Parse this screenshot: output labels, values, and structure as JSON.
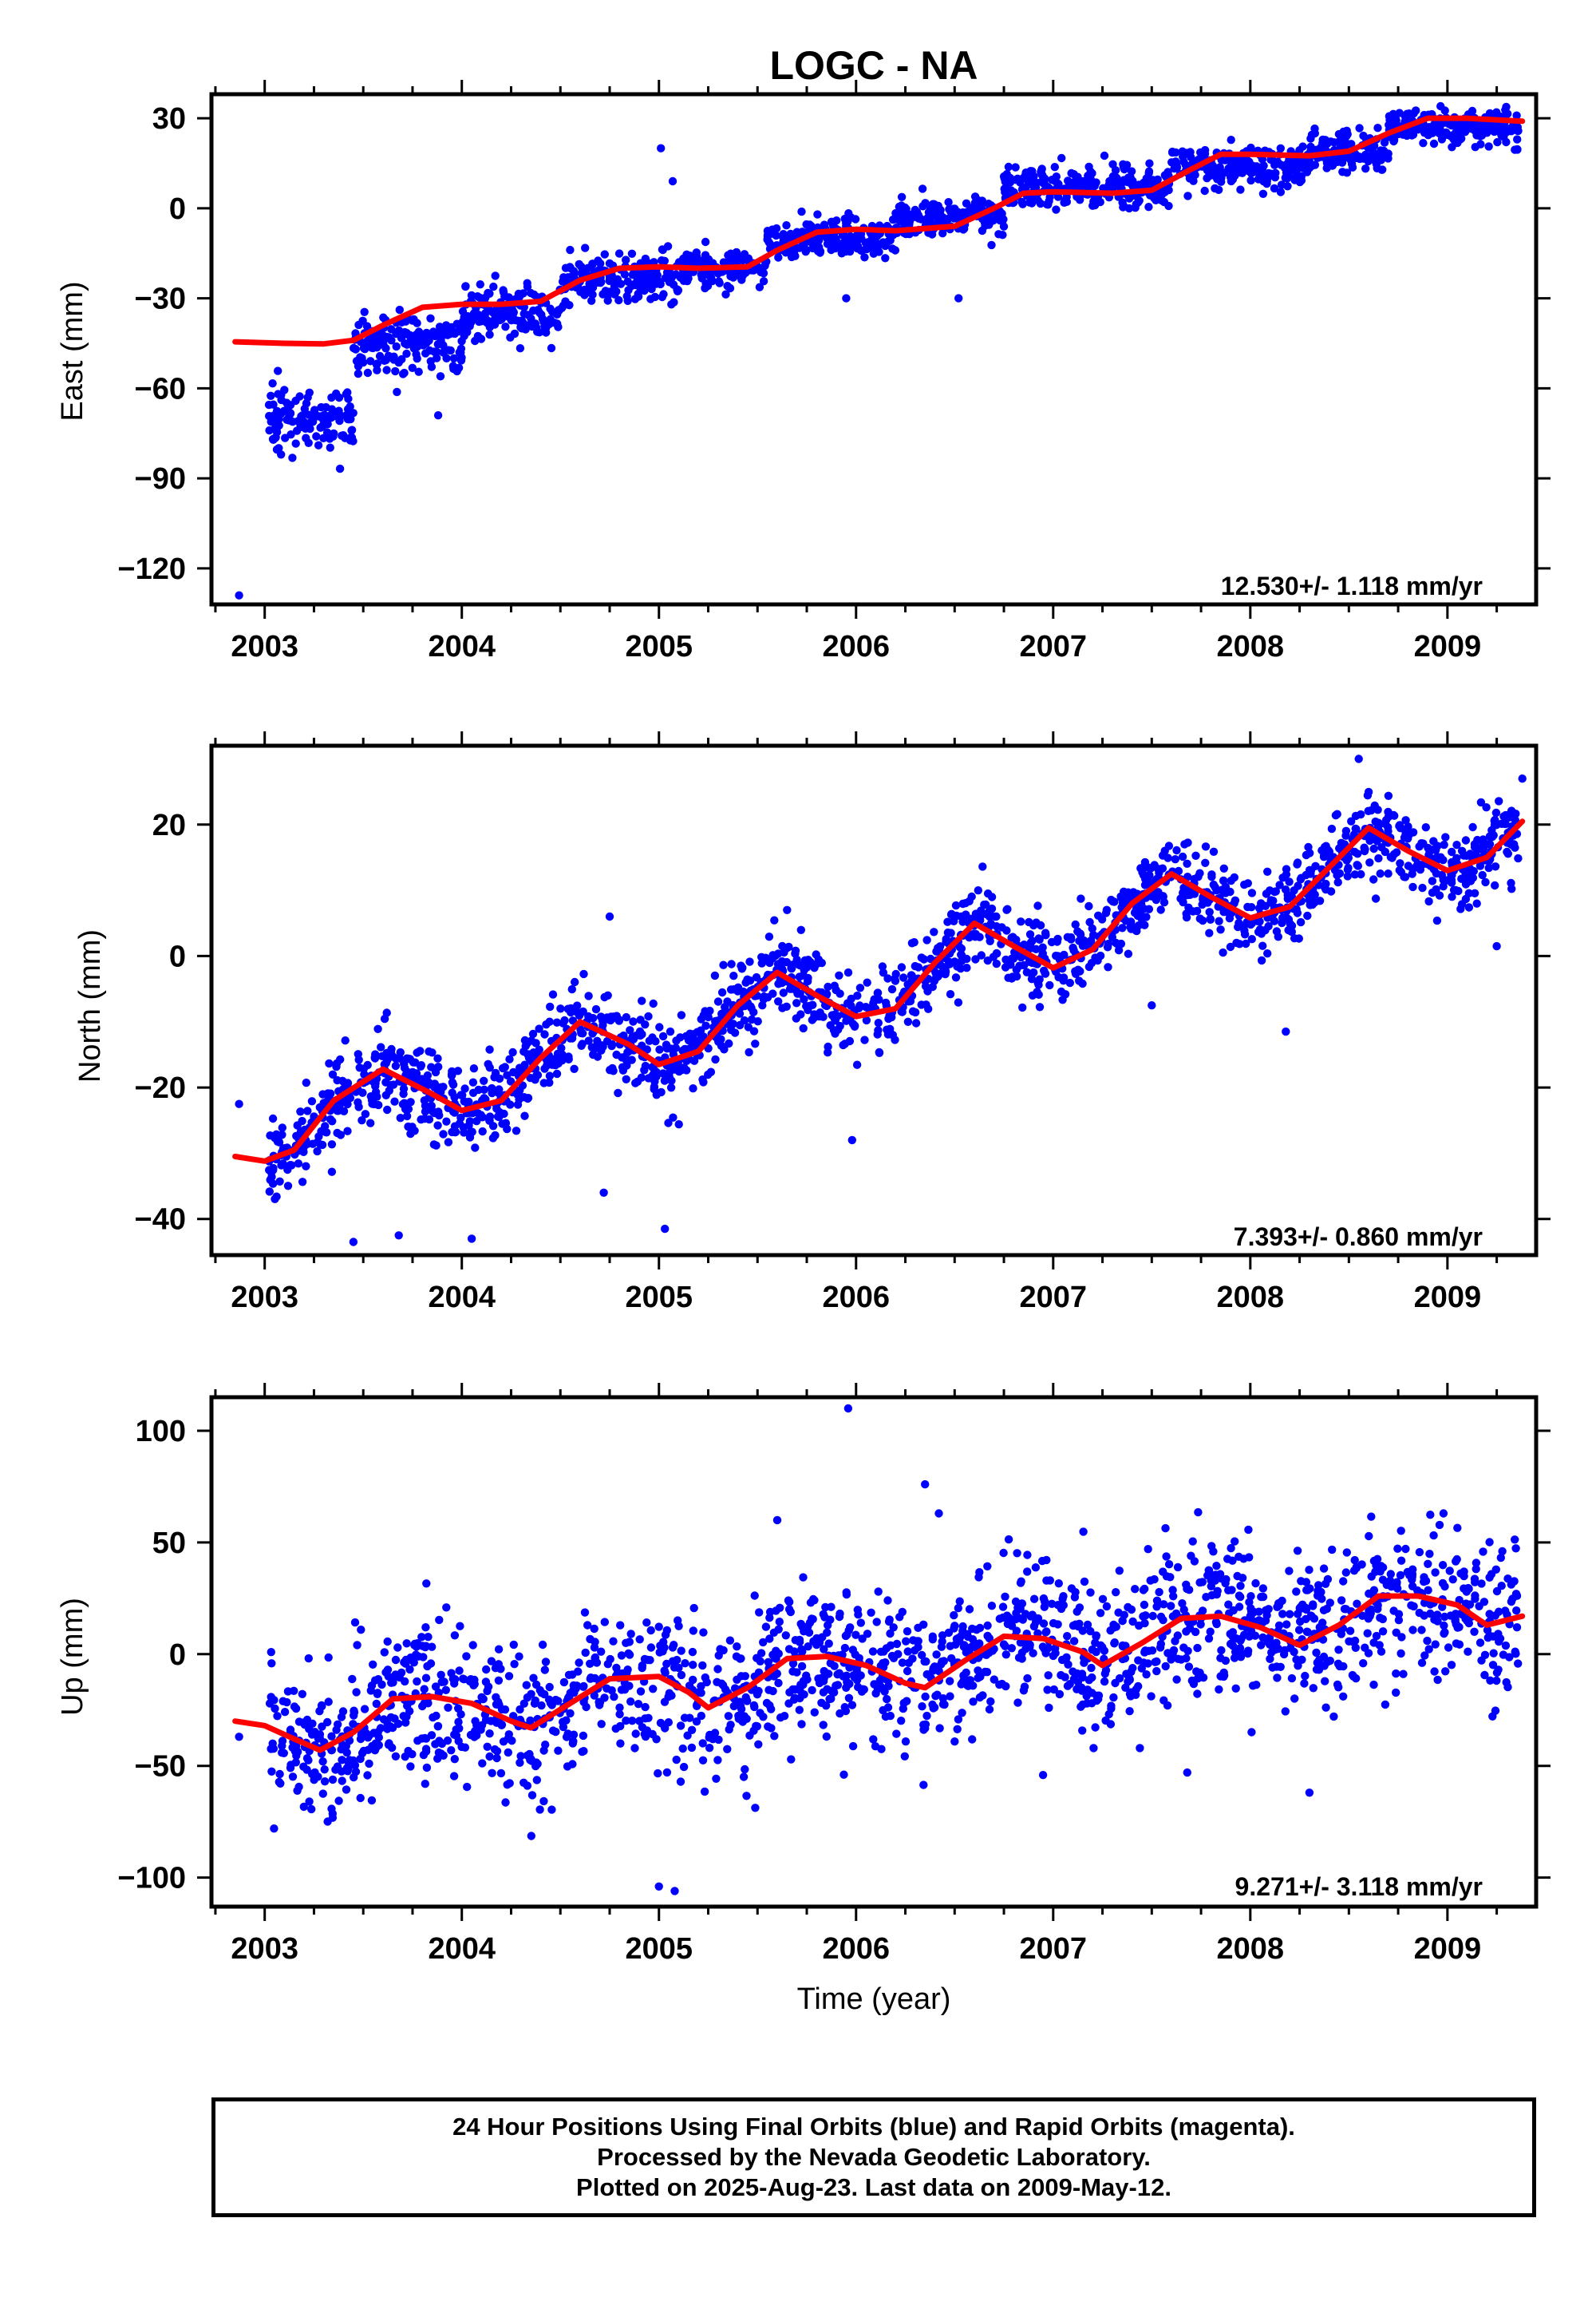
{
  "title": "LOGC - NA",
  "x_axis_title": "Time (year)",
  "footer": {
    "line1": "24 Hour Positions Using Final Orbits (blue) and Rapid Orbits (magenta).",
    "line2": "Processed by the Nevada Geodetic Laboratory.",
    "line3": "Plotted on 2025-Aug-23. Last data on 2009-May-12."
  },
  "colors": {
    "points": "#0000ff",
    "fit": "#ff0000",
    "frame": "#000000"
  },
  "chart_data": [
    {
      "type": "scatter",
      "ylabel": "East (mm)",
      "rate_text": "12.530+/- 1.118 mm/yr",
      "xlim": [
        2002.73,
        2009.45
      ],
      "ylim": [
        -132,
        38
      ],
      "x_ticks": [
        2003,
        2004,
        2005,
        2006,
        2007,
        2008,
        2009
      ],
      "y_ticks": [
        30,
        0,
        -30,
        -60,
        -90,
        -120
      ],
      "y_tick_labels": [
        "30",
        "0",
        "−30",
        "−60",
        "−90",
        "−120"
      ],
      "fit": [
        [
          2002.85,
          -44.5
        ],
        [
          2003.1,
          -45
        ],
        [
          2003.3,
          -45.2
        ],
        [
          2003.45,
          -44
        ],
        [
          2003.6,
          -39
        ],
        [
          2003.8,
          -33
        ],
        [
          2004.0,
          -32
        ],
        [
          2004.2,
          -32
        ],
        [
          2004.4,
          -31
        ],
        [
          2004.6,
          -24
        ],
        [
          2004.8,
          -20
        ],
        [
          2005.0,
          -19.5
        ],
        [
          2005.2,
          -20
        ],
        [
          2005.45,
          -19.5
        ],
        [
          2005.6,
          -14
        ],
        [
          2005.8,
          -8
        ],
        [
          2006.0,
          -7
        ],
        [
          2006.2,
          -7.5
        ],
        [
          2006.5,
          -6
        ],
        [
          2006.7,
          0
        ],
        [
          2006.85,
          5
        ],
        [
          2007.0,
          5.5
        ],
        [
          2007.3,
          5
        ],
        [
          2007.5,
          6
        ],
        [
          2007.7,
          13
        ],
        [
          2007.85,
          18
        ],
        [
          2008.0,
          18
        ],
        [
          2008.3,
          17.5
        ],
        [
          2008.5,
          19
        ],
        [
          2008.7,
          25
        ],
        [
          2008.9,
          30
        ],
        [
          2009.1,
          30
        ],
        [
          2009.38,
          29
        ]
      ],
      "scatter_model": {
        "segments": [
          [
            2003.02,
            2003.45,
            -70,
            8
          ],
          [
            2003.45,
            2004.0,
            -45,
            8
          ],
          [
            2004.0,
            2004.5,
            -35,
            7
          ],
          [
            2004.5,
            2005.1,
            -24,
            7
          ],
          [
            2005.1,
            2005.55,
            -20,
            5
          ],
          [
            2005.55,
            2006.2,
            -10,
            5
          ],
          [
            2006.2,
            2006.75,
            -3,
            5
          ],
          [
            2006.75,
            2007.6,
            7,
            6
          ],
          [
            2007.6,
            2008.3,
            14,
            6
          ],
          [
            2008.3,
            2008.7,
            19,
            6
          ],
          [
            2008.7,
            2009.36,
            27,
            5
          ]
        ]
      },
      "outliers": [
        [
          2002.87,
          -129
        ],
        [
          2005.01,
          20
        ],
        [
          2005.07,
          9
        ],
        [
          2006.52,
          -30
        ],
        [
          2005.95,
          -30
        ],
        [
          2003.88,
          -69
        ]
      ]
    },
    {
      "type": "scatter",
      "ylabel": "North (mm)",
      "rate_text": "7.393+/- 0.860 mm/yr",
      "xlim": [
        2002.73,
        2009.45
      ],
      "ylim": [
        -45.5,
        32
      ],
      "x_ticks": [
        2003,
        2004,
        2005,
        2006,
        2007,
        2008,
        2009
      ],
      "y_ticks": [
        20,
        0,
        -20,
        -40
      ],
      "y_tick_labels": [
        "20",
        "0",
        "−20",
        "−40"
      ],
      "fit": [
        [
          2002.85,
          -30.5
        ],
        [
          2003.0,
          -31.2
        ],
        [
          2003.15,
          -29.5
        ],
        [
          2003.35,
          -22
        ],
        [
          2003.6,
          -17.2
        ],
        [
          2003.85,
          -21
        ],
        [
          2004.0,
          -23.5
        ],
        [
          2004.2,
          -22
        ],
        [
          2004.4,
          -15.5
        ],
        [
          2004.6,
          -10
        ],
        [
          2004.85,
          -13.5
        ],
        [
          2005.0,
          -16.5
        ],
        [
          2005.2,
          -14.5
        ],
        [
          2005.4,
          -7.5
        ],
        [
          2005.6,
          -2.5
        ],
        [
          2005.8,
          -6
        ],
        [
          2006.0,
          -9.2
        ],
        [
          2006.2,
          -8
        ],
        [
          2006.4,
          -1
        ],
        [
          2006.6,
          5
        ],
        [
          2006.8,
          1.5
        ],
        [
          2007.0,
          -1.8
        ],
        [
          2007.2,
          1
        ],
        [
          2007.4,
          8
        ],
        [
          2007.6,
          12.5
        ],
        [
          2007.8,
          9
        ],
        [
          2008.0,
          5.8
        ],
        [
          2008.2,
          7.5
        ],
        [
          2008.4,
          13.5
        ],
        [
          2008.6,
          19.5
        ],
        [
          2008.8,
          16
        ],
        [
          2009.0,
          13
        ],
        [
          2009.2,
          15
        ],
        [
          2009.38,
          20.5
        ]
      ],
      "scatter_model": {
        "noise": 3.2
      },
      "outliers": [
        [
          2002.87,
          -22.5
        ],
        [
          2003.45,
          -43.5
        ],
        [
          2003.68,
          -42.5
        ],
        [
          2004.05,
          -43
        ],
        [
          2005.03,
          -41.5
        ],
        [
          2004.72,
          -36
        ],
        [
          2005.98,
          -28
        ],
        [
          2004.75,
          6
        ],
        [
          2005.65,
          7
        ],
        [
          2007.5,
          -7.5
        ],
        [
          2008.18,
          -11.5
        ],
        [
          2008.55,
          30
        ],
        [
          2009.38,
          27
        ],
        [
          2009.25,
          1.5
        ]
      ]
    },
    {
      "type": "scatter",
      "ylabel": "Up (mm)",
      "rate_text": "9.271+/- 3.118 mm/yr",
      "xlim": [
        2002.73,
        2009.45
      ],
      "ylim": [
        -113,
        115
      ],
      "x_ticks": [
        2003,
        2004,
        2005,
        2006,
        2007,
        2008,
        2009
      ],
      "y_ticks": [
        100,
        50,
        0,
        -50,
        -100
      ],
      "y_tick_labels": [
        "100",
        "50",
        "0",
        "−50",
        "−100"
      ],
      "fit": [
        [
          2002.85,
          -30
        ],
        [
          2003.0,
          -32
        ],
        [
          2003.15,
          -38
        ],
        [
          2003.28,
          -43
        ],
        [
          2003.45,
          -35
        ],
        [
          2003.65,
          -20
        ],
        [
          2003.85,
          -19
        ],
        [
          2004.05,
          -22
        ],
        [
          2004.25,
          -30
        ],
        [
          2004.35,
          -33
        ],
        [
          2004.55,
          -22
        ],
        [
          2004.75,
          -11
        ],
        [
          2005.0,
          -10
        ],
        [
          2005.15,
          -17
        ],
        [
          2005.25,
          -24
        ],
        [
          2005.45,
          -15
        ],
        [
          2005.65,
          -2
        ],
        [
          2005.85,
          -1
        ],
        [
          2006.05,
          -5
        ],
        [
          2006.25,
          -13
        ],
        [
          2006.35,
          -15
        ],
        [
          2006.55,
          -3
        ],
        [
          2006.75,
          8
        ],
        [
          2006.95,
          7
        ],
        [
          2007.15,
          1
        ],
        [
          2007.25,
          -5
        ],
        [
          2007.45,
          5
        ],
        [
          2007.65,
          16
        ],
        [
          2007.85,
          17
        ],
        [
          2008.05,
          12
        ],
        [
          2008.25,
          4
        ],
        [
          2008.45,
          13
        ],
        [
          2008.65,
          26
        ],
        [
          2008.85,
          26
        ],
        [
          2009.05,
          22
        ],
        [
          2009.2,
          13
        ],
        [
          2009.38,
          17
        ]
      ],
      "scatter_model": {
        "noise": 17
      },
      "outliers": [
        [
          2005.96,
          110
        ],
        [
          2006.35,
          76
        ],
        [
          2005.08,
          -106
        ],
        [
          2005.0,
          -104
        ],
        [
          2008.3,
          -62
        ],
        [
          2002.87,
          -37
        ],
        [
          2007.68,
          -53
        ],
        [
          2008.98,
          63
        ],
        [
          2006.42,
          63
        ],
        [
          2005.6,
          60
        ]
      ]
    }
  ]
}
